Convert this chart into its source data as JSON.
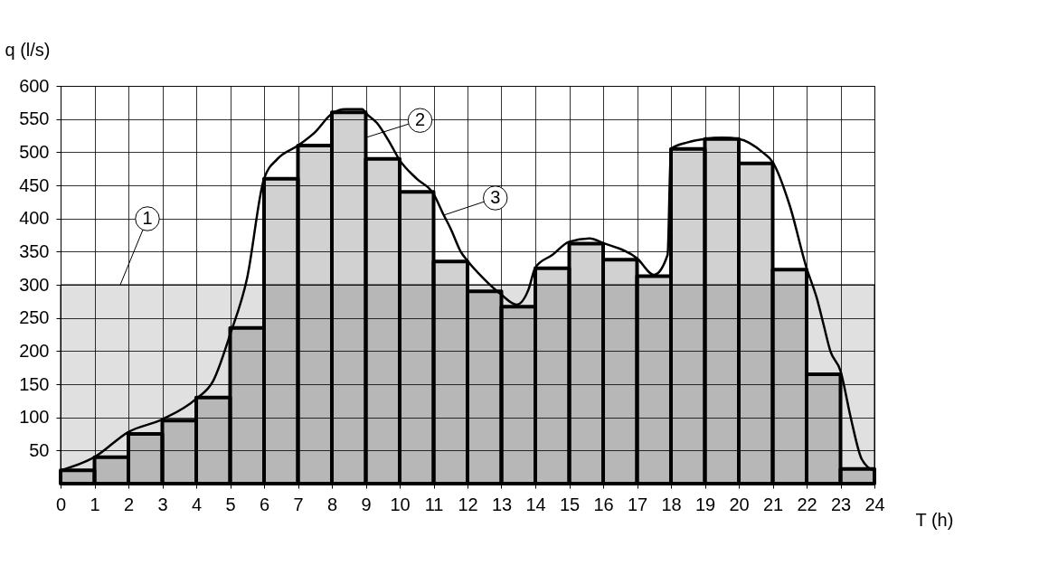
{
  "chart_data": {
    "type": "histogram",
    "xlabel": "T (h)",
    "ylabel": "q (l/s)",
    "xlim": [
      0,
      24
    ],
    "xticks": [
      0,
      1,
      2,
      3,
      4,
      5,
      6,
      7,
      8,
      9,
      10,
      11,
      12,
      13,
      14,
      15,
      16,
      17,
      18,
      19,
      20,
      21,
      22,
      23,
      24
    ],
    "ylim": [
      0,
      600
    ],
    "yticks": [
      50,
      100,
      150,
      200,
      250,
      300,
      350,
      400,
      450,
      500,
      550,
      600
    ],
    "grid": true,
    "color": "#000000",
    "bins": [
      0,
      1,
      2,
      3,
      4,
      5,
      6,
      7,
      8,
      9,
      10,
      11,
      12,
      13,
      14,
      15,
      16,
      17,
      18,
      19,
      20,
      21,
      22,
      23,
      24
    ],
    "values": [
      20,
      40,
      75,
      95,
      130,
      235,
      460,
      510,
      560,
      490,
      440,
      335,
      290,
      267,
      325,
      362,
      338,
      313,
      505,
      520,
      483,
      323,
      165,
      22
    ],
    "series": [
      {
        "type": "area",
        "color": "#000000",
        "x": [
          0,
          24
        ],
        "values": [
          300,
          300
        ]
      },
      {
        "type": "line",
        "color": "#000000",
        "x": [
          0,
          1,
          2,
          3,
          4,
          4.5,
          5,
          5.5,
          6,
          6.4,
          7,
          7.5,
          8,
          8.4,
          8.9,
          9,
          9.33,
          9.7,
          10,
          10.5,
          11,
          11.3,
          11.5,
          11.8,
          12,
          12.5,
          13,
          13.45,
          13.8,
          14,
          14.5,
          15,
          15.6,
          16,
          17,
          17.5,
          17.9,
          18,
          18.5,
          19,
          19.5,
          20,
          20.7,
          21,
          21.5,
          22,
          22.3,
          22.5,
          22.7,
          23,
          23.3,
          23.6,
          23.8,
          24
        ],
        "values": [
          20,
          40,
          78,
          97,
          128,
          155,
          225,
          310,
          460,
          490,
          510,
          530,
          558,
          565,
          565,
          559,
          544,
          515,
          488,
          460,
          437,
          405,
          385,
          350,
          336,
          308,
          285,
          270,
          293,
          326,
          345,
          365,
          370,
          363,
          340,
          315,
          345,
          505,
          515,
          520,
          522,
          520,
          500,
          485,
          420,
          325,
          280,
          240,
          200,
          170,
          100,
          40,
          25,
          20
        ]
      }
    ],
    "annotations": [
      {
        "text": "1",
        "x": 1.76,
        "y": 300
      },
      {
        "text": "2",
        "x": 9,
        "y": 522
      },
      {
        "text": "3",
        "x": 11.3,
        "y": 405
      }
    ]
  }
}
